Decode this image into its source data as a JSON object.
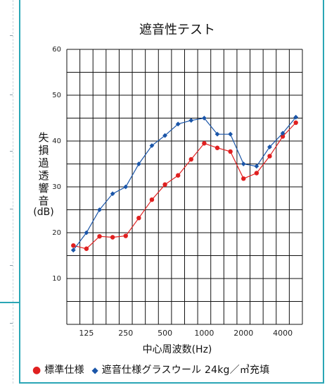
{
  "chart_data": {
    "type": "line",
    "title": "遮音性テスト",
    "xlabel": "中心周波数(Hz)",
    "ylabel": "失損過透響音(dB)",
    "ylabel_chars": [
      "失",
      "損",
      "過",
      "透",
      "響",
      "音"
    ],
    "ylabel_unit": "(dB)",
    "ylim": [
      0,
      60
    ],
    "yticks": [
      10,
      20,
      30,
      40,
      50,
      60
    ],
    "xticks": [
      {
        "label": "125",
        "index": 1
      },
      {
        "label": "250",
        "index": 4
      },
      {
        "label": "500",
        "index": 7
      },
      {
        "label": "1000",
        "index": 10
      },
      {
        "label": "2000",
        "index": 13
      },
      {
        "label": "4000",
        "index": 16
      }
    ],
    "x": [
      "100",
      "125",
      "160",
      "200",
      "250",
      "315",
      "400",
      "500",
      "630",
      "800",
      "1000",
      "1250",
      "1600",
      "2000",
      "2500",
      "3150",
      "4000",
      "5000"
    ],
    "grid": true,
    "series": [
      {
        "name": "標準仕様",
        "color": "#e02020",
        "marker": "circle",
        "values": [
          17.2,
          16.5,
          19.2,
          19.0,
          19.3,
          23.2,
          27.2,
          30.5,
          32.5,
          36.0,
          39.5,
          38.5,
          37.7,
          31.8,
          33.0,
          36.7,
          41.0,
          44.0
        ]
      },
      {
        "name": "遮音仕様グラスウール 24kg／㎥充填",
        "color": "#1a55a8",
        "marker": "diamond",
        "values": [
          16.2,
          20.0,
          25.0,
          28.5,
          30.0,
          35.0,
          39.0,
          41.2,
          43.7,
          44.5,
          45.0,
          41.5,
          41.5,
          35.0,
          34.5,
          38.7,
          41.7,
          45.2
        ]
      }
    ]
  },
  "legend": {
    "circle_symbol": "●",
    "diamond_symbol": "◆"
  }
}
